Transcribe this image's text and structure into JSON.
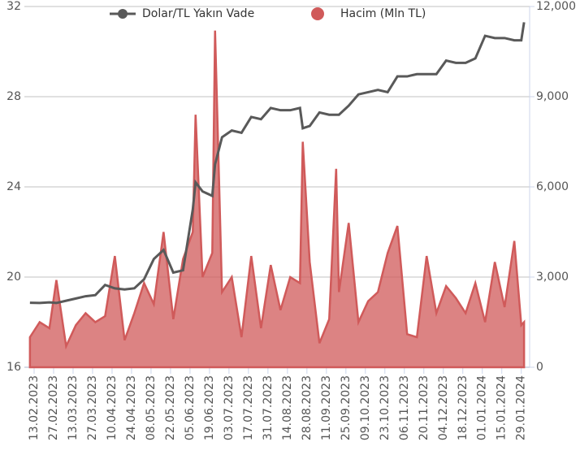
{
  "chart_data": {
    "type": "line",
    "legend_position": "top",
    "grid": true,
    "x": [
      "10.02.2023",
      "17.02.2023",
      "24.02.2023",
      "01.03.2023",
      "08.03.2023",
      "15.03.2023",
      "22.03.2023",
      "29.03.2023",
      "05.04.2023",
      "12.04.2023",
      "19.04.2023",
      "26.04.2023",
      "03.05.2023",
      "10.05.2023",
      "17.05.2023",
      "24.05.2023",
      "31.05.2023",
      "07.06.2023",
      "09.06.2023",
      "14.06.2023",
      "21.06.2023",
      "23.06.2023",
      "28.06.2023",
      "05.07.2023",
      "12.07.2023",
      "19.07.2023",
      "26.07.2023",
      "02.08.2023",
      "09.08.2023",
      "16.08.2023",
      "23.08.2023",
      "25.08.2023",
      "30.08.2023",
      "06.09.2023",
      "13.09.2023",
      "18.09.2023",
      "20.09.2023",
      "27.09.2023",
      "04.10.2023",
      "11.10.2023",
      "18.10.2023",
      "25.10.2023",
      "01.11.2023",
      "08.11.2023",
      "15.11.2023",
      "22.11.2023",
      "29.11.2023",
      "06.12.2023",
      "13.12.2023",
      "20.12.2023",
      "27.12.2023",
      "03.01.2024",
      "10.01.2024",
      "17.01.2024",
      "24.01.2024",
      "29.01.2024",
      "31.01.2024"
    ],
    "series": [
      {
        "name": "Dolar/TL Yakın Vade",
        "color": "#595959",
        "axis": "y",
        "values": [
          18.86,
          18.85,
          18.88,
          18.85,
          18.95,
          19.05,
          19.15,
          19.2,
          19.65,
          19.5,
          19.45,
          19.5,
          19.9,
          20.8,
          21.2,
          20.2,
          20.3,
          23.0,
          24.2,
          23.8,
          23.6,
          25.0,
          26.2,
          26.5,
          26.4,
          27.1,
          27.0,
          27.5,
          27.4,
          27.4,
          27.5,
          26.6,
          26.7,
          27.3,
          27.2,
          27.2,
          27.2,
          27.6,
          28.1,
          28.2,
          28.3,
          28.2,
          28.9,
          28.9,
          29.0,
          29.0,
          29.0,
          29.6,
          29.5,
          29.5,
          29.7,
          30.7,
          30.6,
          30.6,
          30.5,
          30.5,
          31.3
        ]
      },
      {
        "name": "Hacim (Mln TL)",
        "color": "#d05a5a",
        "axis": "y2",
        "values": [
          1000,
          1500,
          1300,
          2900,
          700,
          1400,
          1800,
          1500,
          1700,
          3700,
          900,
          1800,
          2800,
          2100,
          4500,
          1600,
          3600,
          4500,
          8400,
          3000,
          3800,
          11200,
          2500,
          3000,
          1000,
          3700,
          1300,
          3400,
          1900,
          3000,
          2800,
          7500,
          3500,
          800,
          1600,
          6600,
          2500,
          4800,
          1500,
          2200,
          2500,
          3800,
          4700,
          1100,
          1000,
          3700,
          1800,
          2700,
          2300,
          1800,
          2800,
          1500,
          3500,
          2000,
          4200,
          1400,
          1500
        ]
      }
    ],
    "xlim": [
      "06.02.2023",
      "04.02.2024"
    ],
    "xticks": [
      "13.02.2023",
      "27.02.2023",
      "13.03.2023",
      "27.03.2023",
      "10.04.2023",
      "24.04.2023",
      "08.05.2023",
      "22.05.2023",
      "05.06.2023",
      "19.06.2023",
      "03.07.2023",
      "17.07.2023",
      "31.07.2023",
      "14.08.2023",
      "28.08.2023",
      "11.09.2023",
      "25.09.2023",
      "09.10.2023",
      "23.10.2023",
      "06.11.2023",
      "20.11.2023",
      "04.12.2023",
      "18.12.2023",
      "01.01.2024",
      "15.01.2024",
      "29.01.2024"
    ],
    "ylim": [
      16,
      32
    ],
    "yticks": [
      16,
      20,
      24,
      28,
      32
    ],
    "y2lim": [
      0,
      12000
    ],
    "y2ticks": [
      0,
      {
        "value": 3000,
        "label": "3,000"
      },
      {
        "value": 6000,
        "label": "6,000"
      },
      {
        "value": 9000,
        "label": "9,000"
      },
      {
        "value": 12000,
        "label": "12,000"
      }
    ]
  }
}
